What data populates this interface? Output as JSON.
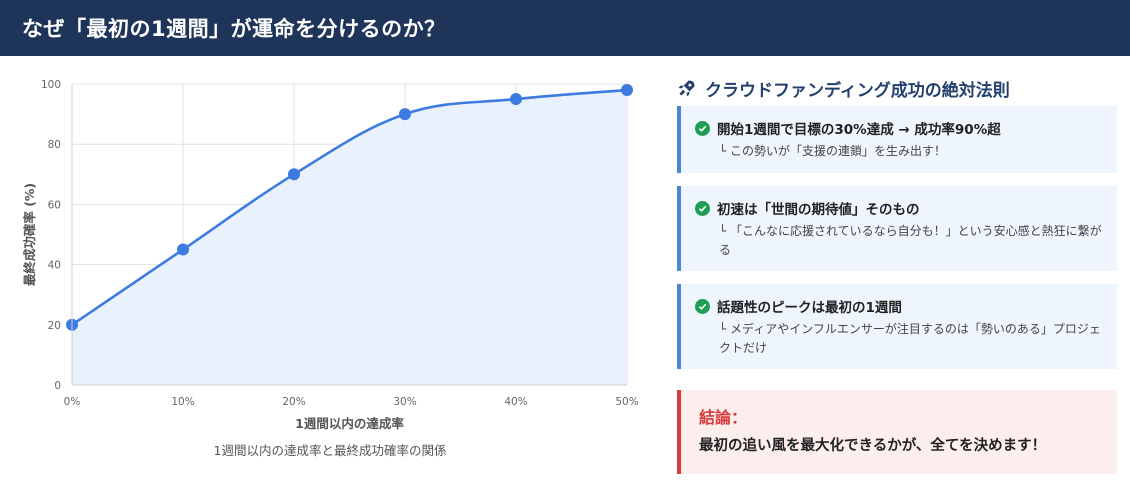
{
  "header": {
    "title": "なぜ「最初の1週間」が運命を分けるのか？"
  },
  "chart_data": {
    "type": "area",
    "x": [
      0,
      10,
      20,
      30,
      40,
      50
    ],
    "x_tick_labels": [
      "0%",
      "10%",
      "20%",
      "30%",
      "40%",
      "50%"
    ],
    "y_tick_labels": [
      "0",
      "20",
      "40",
      "60",
      "80",
      "100"
    ],
    "series": [
      {
        "values": [
          20,
          45,
          70,
          90,
          95,
          98
        ]
      }
    ],
    "xlabel": "1週間以内の達成率",
    "ylabel": "最終成功確率 (%)",
    "caption": "1週間以内の達成率と最終成功確率の関係",
    "xlim": [
      0,
      50
    ],
    "ylim": [
      0,
      100
    ],
    "grid": true,
    "colors": {
      "line": "#3d7be0",
      "fill": "#e4eefc",
      "point": "#3d7be0",
      "grid": "#e3e3e3"
    }
  },
  "panel": {
    "title": "クラウドファンディング成功の絶対法則",
    "icon": "rocket-icon",
    "cards": [
      {
        "title": "開始1週間で目標の30%達成 → 成功率90%超",
        "detail": "└ この勢いが「支援の連鎖」を生み出す！"
      },
      {
        "title": "初速は「世間の期待値」そのもの",
        "detail": "└ 「こんなに応援されているなら自分も！」という安心感と熱狂に繋がる"
      },
      {
        "title": "話題性のピークは最初の1週間",
        "detail": "└ メディアやインフルエンサーが注目するのは「勢いのある」プロジェクトだけ"
      }
    ]
  },
  "conclusion": {
    "title": "結論：",
    "body": "最初の追い風を最大化できるかが、全てを決めます！"
  },
  "colors": {
    "header_bg": "#1e3458",
    "card_bg": "#eef5fd",
    "card_border": "#4a88d6",
    "conclusion_bg": "#fdeeee",
    "conclusion_accent": "#d93a3a"
  }
}
